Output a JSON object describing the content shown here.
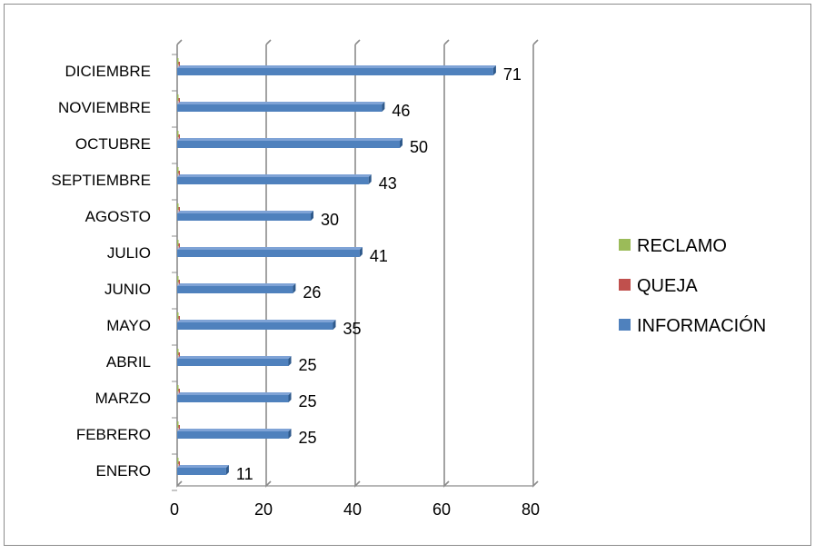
{
  "colors": {
    "informacion": "#4F81BD",
    "informacion_dark": "#2F5A8C",
    "queja": "#C0504D",
    "reclamo": "#9BBB59",
    "grid": "#8C8C8C",
    "frame": "#8C8C8C",
    "text": "#000000"
  },
  "chart_data": {
    "type": "bar",
    "orientation": "horizontal",
    "categories": [
      "ENERO",
      "FEBRERO",
      "MARZO",
      "ABRIL",
      "MAYO",
      "JUNIO",
      "JULIO",
      "AGOSTO",
      "SEPTIEMBRE",
      "OCTUBRE",
      "NOVIEMBRE",
      "DICIEMBRE"
    ],
    "series": [
      {
        "name": "INFORMACIÓN",
        "color": "#4F81BD",
        "values": [
          11,
          25,
          25,
          25,
          35,
          26,
          41,
          30,
          43,
          50,
          46,
          71
        ]
      },
      {
        "name": "QUEJA",
        "color": "#C0504D",
        "values": [
          0,
          0,
          0,
          0,
          0,
          0,
          0,
          0,
          0,
          0,
          0,
          0
        ]
      },
      {
        "name": "RECLAMO",
        "color": "#9BBB59",
        "values": [
          0,
          0,
          0,
          0,
          0,
          0,
          0,
          0,
          0,
          0,
          0,
          0
        ]
      }
    ],
    "legend_order": [
      "RECLAMO",
      "QUEJA",
      "INFORMACIÓN"
    ],
    "xlim": [
      0,
      80
    ],
    "x_ticks": [
      0,
      20,
      40,
      60,
      80
    ],
    "grid": true,
    "legend_position": "right",
    "data_labels": true,
    "title": "",
    "xlabel": "",
    "ylabel": ""
  }
}
